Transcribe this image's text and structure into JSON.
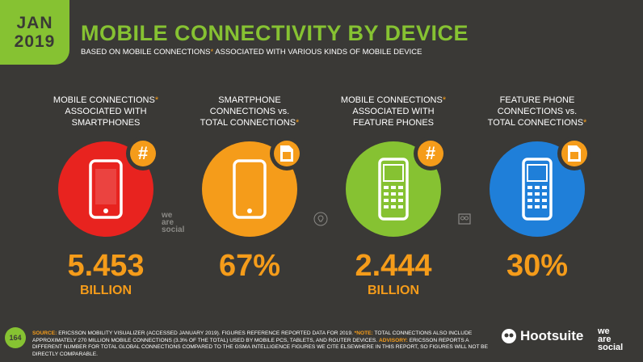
{
  "header": {
    "badge_month": "JAN",
    "badge_year": "2019",
    "title": "MOBILE CONNECTIVITY BY DEVICE",
    "subtitle_a": "BASED ON MOBILE CONNECTIONS",
    "subtitle_star": "*",
    "subtitle_b": " ASSOCIATED WITH VARIOUS KINDS OF MOBILE DEVICE"
  },
  "columns": [
    {
      "label_1": "MOBILE CONNECTIONS",
      "label_1_star": "*",
      "label_2": "ASSOCIATED WITH",
      "label_3": "SMARTPHONES",
      "label_3_star": "",
      "value": "5.453",
      "unit": "BILLION",
      "color": "#e8231f",
      "badge_symbol": "#",
      "badge_icon": "hash-icon",
      "device_icon": "smartphone-icon"
    },
    {
      "label_1": "SMARTPHONE",
      "label_1_star": "",
      "label_2": "CONNECTIONS vs.",
      "label_3": "TOTAL CONNECTIONS",
      "label_3_star": "*",
      "value": "67%",
      "unit": "",
      "color": "#f59c1a",
      "badge_symbol": "",
      "badge_icon": "sim-card-icon",
      "device_icon": "smartphone-icon"
    },
    {
      "label_1": "MOBILE CONNECTIONS",
      "label_1_star": "*",
      "label_2": "ASSOCIATED WITH",
      "label_3": "FEATURE PHONES",
      "label_3_star": "",
      "value": "2.444",
      "unit": "BILLION",
      "color": "#86c232",
      "badge_symbol": "#",
      "badge_icon": "hash-icon",
      "device_icon": "feature-phone-icon"
    },
    {
      "label_1": "FEATURE PHONE",
      "label_1_star": "",
      "label_2": "CONNECTIONS vs.",
      "label_3": "TOTAL CONNECTIONS",
      "label_3_star": "*",
      "value": "30%",
      "unit": "",
      "color": "#1f7fd9",
      "badge_symbol": "",
      "badge_icon": "sim-card-icon",
      "device_icon": "feature-phone-icon"
    }
  ],
  "watermark": {
    "line1": "we",
    "line2": "are",
    "line3": "social"
  },
  "footer": {
    "page_number": "164",
    "source_label": "SOURCE:",
    "source_text": " ERICSSON MOBILITY VISUALIZER (ACCESSED JANUARY 2019). FIGURES REFERENCE REPORTED DATA FOR 2019. ",
    "note_label": "*NOTE:",
    "note_text": " TOTAL CONNECTIONS ALSO INCLUDE APPROXIMATELY 270 MILLION MOBILE CONNECTIONS (3.3% OF THE TOTAL) USED BY MOBILE PCS, TABLETS, AND ROUTER DEVICES. ",
    "advisory_label": "ADVISORY:",
    "advisory_text": " ERICSSON REPORTS A DIFFERENT NUMBER FOR TOTAL GLOBAL CONNECTIONS COMPARED TO THE GSMA INTELLIGENCE FIGURES WE CITE ELSEWHERE IN THIS REPORT, SO FIGURES WILL NOT BE DIRECTLY COMPARABLE.",
    "hootsuite": "Hootsuite",
    "was_1": "we",
    "was_2": "are",
    "was_3": "social"
  },
  "colors": {
    "green": "#86c232",
    "orange": "#f59c1a",
    "red": "#e8231f",
    "blue": "#1f7fd9",
    "background": "#3a3936"
  }
}
